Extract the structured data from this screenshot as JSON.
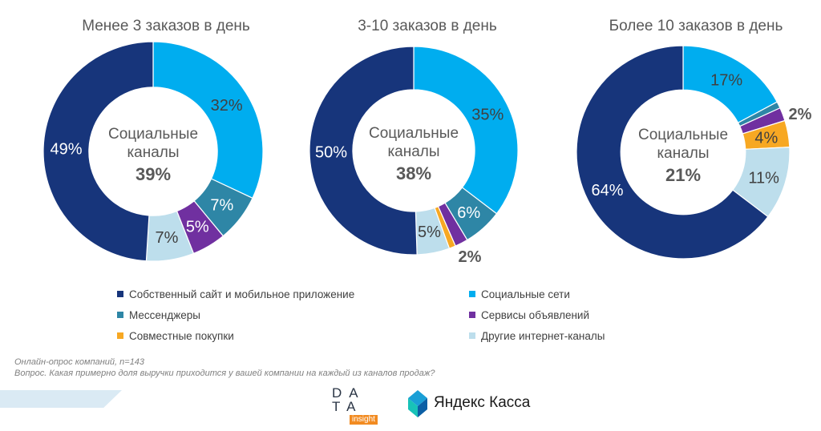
{
  "legend": [
    {
      "label": "Собственный сайт и мобильное приложение",
      "color": "#17357b"
    },
    {
      "label": "Социальные сети",
      "color": "#00adef"
    },
    {
      "label": "Мессенджеры",
      "color": "#2e86a6"
    },
    {
      "label": "Сервисы объявлений",
      "color": "#7030a0"
    },
    {
      "label": "Совместные покупки",
      "color": "#f7a823"
    },
    {
      "label": "Другие интернет-каналы",
      "color": "#bddeec"
    }
  ],
  "chart_data": [
    {
      "type": "pie",
      "title": "Менее 3 заказов в день",
      "center_label_line1": "Социальные",
      "center_label_line2": "каналы",
      "center_value": "39%",
      "slices": [
        {
          "name": "Социальные сети",
          "value": 32,
          "label": "32%"
        },
        {
          "name": "Мессенджеры",
          "value": 7,
          "label": "7%"
        },
        {
          "name": "Сервисы объявлений",
          "value": 5,
          "label": "5%"
        },
        {
          "name": "Совместные покупки",
          "value": 0,
          "label": ""
        },
        {
          "name": "Другие интернет-каналы",
          "value": 7,
          "label": "7%"
        },
        {
          "name": "Собственный сайт и мобильное приложение",
          "value": 49,
          "label": "49%"
        }
      ]
    },
    {
      "type": "pie",
      "title": "3-10 заказов в день",
      "center_label_line1": "Социальные",
      "center_label_line2": "каналы",
      "center_value": "38%",
      "slices": [
        {
          "name": "Социальные сети",
          "value": 35,
          "label": "35%"
        },
        {
          "name": "Мессенджеры",
          "value": 6,
          "label": "6%"
        },
        {
          "name": "Сервисы объявлений",
          "value": 2,
          "label": "2%"
        },
        {
          "name": "Совместные покупки",
          "value": 1,
          "label": ""
        },
        {
          "name": "Другие интернет-каналы",
          "value": 5,
          "label": "5%"
        },
        {
          "name": "Собственный сайт и мобильное приложение",
          "value": 50,
          "label": "50%"
        }
      ]
    },
    {
      "type": "pie",
      "title": "Более 10 заказов в день",
      "center_label_line1": "Социальные",
      "center_label_line2": "каналы",
      "center_value": "21%",
      "slices": [
        {
          "name": "Социальные сети",
          "value": 17,
          "label": "17%"
        },
        {
          "name": "Мессенджеры",
          "value": 1,
          "label": ""
        },
        {
          "name": "Сервисы объявлений",
          "value": 2,
          "label": "2%"
        },
        {
          "name": "Совместные покупки",
          "value": 4,
          "label": "4%"
        },
        {
          "name": "Другие интернет-каналы",
          "value": 11,
          "label": "11%"
        },
        {
          "name": "Собственный сайт и мобильное приложение",
          "value": 64,
          "label": "64%"
        }
      ]
    }
  ],
  "footnote": {
    "line1": "Онлайн-опрос компаний, n=143",
    "line2": "Вопрос. Какая примерно доля выручки приходится у вашей компании на каждый из каналов продаж?"
  },
  "logos": {
    "data_insight_row1": "DA",
    "data_insight_row2": "TA",
    "data_insight_sub": "insight",
    "yandex_kassa": "Яндекс Касса"
  }
}
